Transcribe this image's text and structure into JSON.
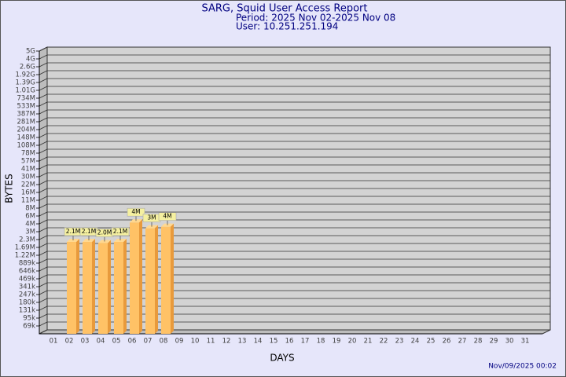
{
  "chart_data": {
    "type": "bar",
    "title": "SARG, Squid User Access Report",
    "subtitle": [
      "Period: 2025 Nov 02-2025 Nov 08",
      "User: 10.251.251.194"
    ],
    "x_label": "DAYS",
    "y_label": "BYTES",
    "footer": "Nov/09/2025 00:02",
    "categories": [
      "01",
      "02",
      "03",
      "04",
      "05",
      "06",
      "07",
      "08",
      "09",
      "10",
      "11",
      "12",
      "13",
      "14",
      "15",
      "16",
      "17",
      "18",
      "19",
      "20",
      "21",
      "22",
      "23",
      "24",
      "25",
      "26",
      "27",
      "28",
      "29",
      "30",
      "31"
    ],
    "values": [
      null,
      2100000,
      2100000,
      2000000,
      2100000,
      4300000,
      3400000,
      3600000,
      null,
      null,
      null,
      null,
      null,
      null,
      null,
      null,
      null,
      null,
      null,
      null,
      null,
      null,
      null,
      null,
      null,
      null,
      null,
      null,
      null,
      null,
      null
    ],
    "value_labels": [
      null,
      "2.1M",
      "2.1M",
      "2.0M",
      "2.1M",
      "4M",
      "3M",
      "4M",
      null,
      null,
      null,
      null,
      null,
      null,
      null,
      null,
      null,
      null,
      null,
      null,
      null,
      null,
      null,
      null,
      null,
      null,
      null,
      null,
      null,
      null,
      null
    ],
    "color": "#ffc266",
    "log_scale": true,
    "ylim": [
      50000,
      5000000000
    ],
    "yticks": [
      {
        "value": 69000,
        "label": "69k"
      },
      {
        "value": 95000,
        "label": "95k"
      },
      {
        "value": 131000,
        "label": "131k"
      },
      {
        "value": 180000,
        "label": "180k"
      },
      {
        "value": 247000,
        "label": "247k"
      },
      {
        "value": 341000,
        "label": "341k"
      },
      {
        "value": 469000,
        "label": "469k"
      },
      {
        "value": 646000,
        "label": "646k"
      },
      {
        "value": 889000,
        "label": "889k"
      },
      {
        "value": 1220000,
        "label": "1.22M"
      },
      {
        "value": 1690000,
        "label": "1.69M"
      },
      {
        "value": 2300000,
        "label": "2.3M"
      },
      {
        "value": 3000000,
        "label": "3M"
      },
      {
        "value": 4000000,
        "label": "4M"
      },
      {
        "value": 6000000,
        "label": "6M"
      },
      {
        "value": 8000000,
        "label": "8M"
      },
      {
        "value": 11000000,
        "label": "11M"
      },
      {
        "value": 16000000,
        "label": "16M"
      },
      {
        "value": 22000000,
        "label": "22M"
      },
      {
        "value": 30000000,
        "label": "30M"
      },
      {
        "value": 41000000,
        "label": "41M"
      },
      {
        "value": 57000000,
        "label": "57M"
      },
      {
        "value": 78000000,
        "label": "78M"
      },
      {
        "value": 108000000,
        "label": "108M"
      },
      {
        "value": 148000000,
        "label": "148M"
      },
      {
        "value": 204000000,
        "label": "204M"
      },
      {
        "value": 281000000,
        "label": "281M"
      },
      {
        "value": 387000000,
        "label": "387M"
      },
      {
        "value": 533000000,
        "label": "533M"
      },
      {
        "value": 734000000,
        "label": "734M"
      },
      {
        "value": 1010000000,
        "label": "1.01G"
      },
      {
        "value": 1390000000,
        "label": "1.39G"
      },
      {
        "value": 1920000000,
        "label": "1.92G"
      },
      {
        "value": 2600000000,
        "label": "2.6G"
      },
      {
        "value": 4000000000,
        "label": "4G"
      },
      {
        "value": 5000000000,
        "label": "5G"
      }
    ],
    "grid": true
  }
}
